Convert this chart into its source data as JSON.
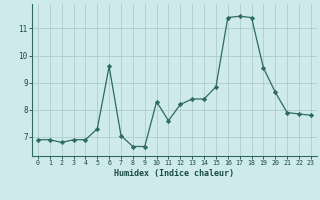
{
  "x": [
    0,
    1,
    2,
    3,
    4,
    5,
    6,
    7,
    8,
    9,
    10,
    11,
    12,
    13,
    14,
    15,
    16,
    17,
    18,
    19,
    20,
    21,
    22,
    23
  ],
  "y": [
    6.9,
    6.9,
    6.8,
    6.9,
    6.9,
    7.3,
    9.6,
    7.05,
    6.65,
    6.65,
    8.3,
    7.6,
    8.2,
    8.4,
    8.4,
    8.85,
    11.4,
    11.45,
    11.4,
    9.55,
    8.65,
    7.9,
    7.85,
    7.8
  ],
  "xlabel": "Humidex (Indice chaleur)",
  "ylim": [
    6.3,
    11.9
  ],
  "xlim": [
    -0.5,
    23.5
  ],
  "yticks": [
    7,
    8,
    9,
    10,
    11
  ],
  "xticks": [
    0,
    1,
    2,
    3,
    4,
    5,
    6,
    7,
    8,
    9,
    10,
    11,
    12,
    13,
    14,
    15,
    16,
    17,
    18,
    19,
    20,
    21,
    22,
    23
  ],
  "line_color": "#2d6b5e",
  "marker": "D",
  "marker_size": 2.2,
  "bg_color": "#ceeaea",
  "grid_color": "#b0cccc",
  "tick_color": "#1a4a4a",
  "label_color": "#1a4a4a"
}
